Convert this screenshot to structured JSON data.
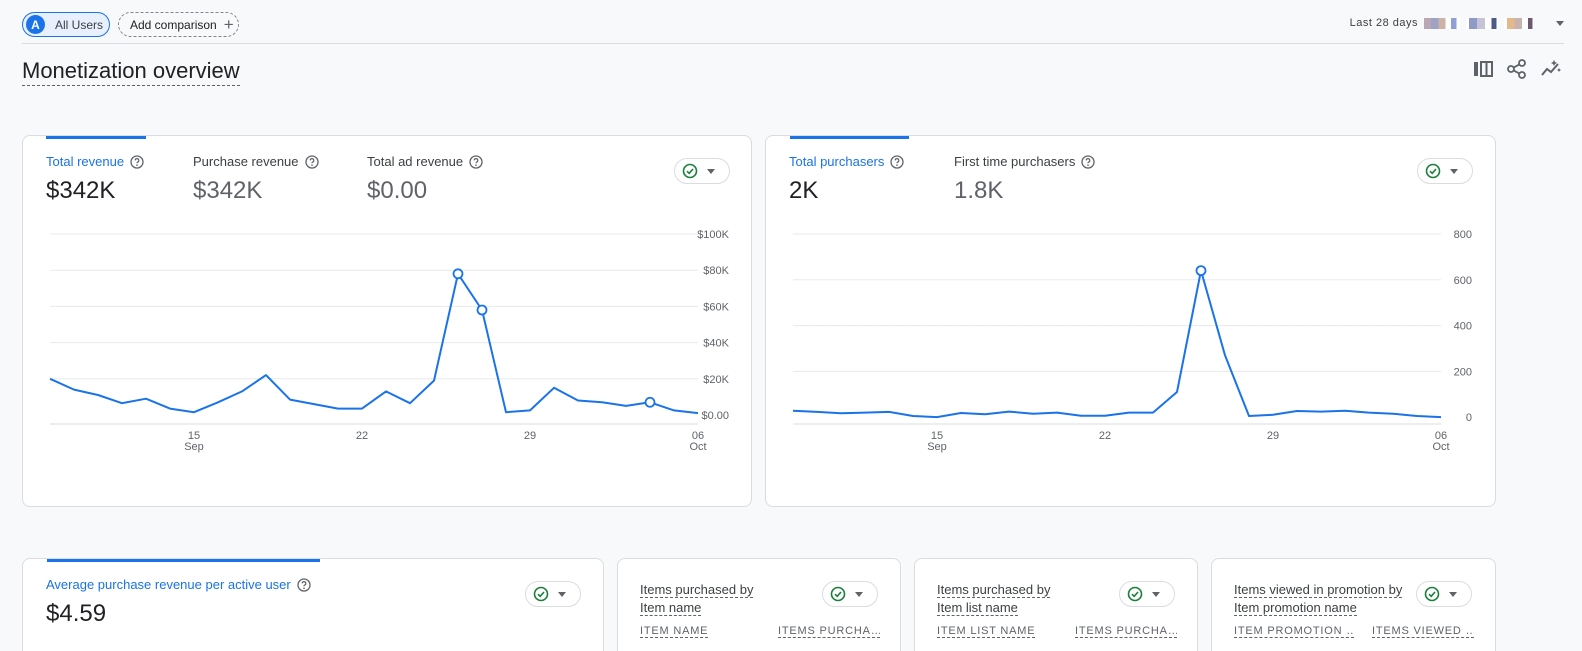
{
  "topbar": {
    "segment_avatar": "A",
    "segment_label": "All Users",
    "add_comparison_label": "Add comparison",
    "add_icon": "+",
    "date_range_label": "Last 28 days"
  },
  "page": {
    "title": "Monetization overview"
  },
  "revenue_card": {
    "metrics": [
      {
        "label": "Total revenue",
        "value": "$342K",
        "active": true
      },
      {
        "label": "Purchase revenue",
        "value": "$342K",
        "active": false
      },
      {
        "label": "Total ad revenue",
        "value": "$0.00",
        "active": false
      }
    ]
  },
  "purchasers_card": {
    "metrics": [
      {
        "label": "Total purchasers",
        "value": "2K",
        "active": true
      },
      {
        "label": "First time purchasers",
        "value": "1.8K",
        "active": false
      }
    ]
  },
  "arpu_card": {
    "metric": {
      "label": "Average purchase revenue per active user",
      "value": "$4.59"
    }
  },
  "table_cards": [
    {
      "title_prefix": "Items purchased by",
      "title_dim": "Item name",
      "col1": "ITEM NAME",
      "col2": "ITEMS PURCHA…"
    },
    {
      "title_prefix": "Items purchased by",
      "title_dim": "Item list name",
      "col1": "ITEM LIST NAME",
      "col2": "ITEMS PURCHA…"
    },
    {
      "title_prefix": "Items viewed in promotion by",
      "title_dim": "Item promotion name",
      "col1": "ITEM PROMOTION …",
      "col2": "ITEMS VIEWED …"
    }
  ],
  "chart_data": [
    {
      "type": "line",
      "title": "",
      "x": [
        "Sep 9",
        "Sep 10",
        "Sep 11",
        "Sep 12",
        "Sep 13",
        "Sep 14",
        "Sep 15",
        "Sep 16",
        "Sep 17",
        "Sep 18",
        "Sep 19",
        "Sep 20",
        "Sep 21",
        "Sep 22",
        "Sep 23",
        "Sep 24",
        "Sep 25",
        "Sep 26",
        "Sep 27",
        "Sep 28",
        "Sep 29",
        "Sep 30",
        "Oct 1",
        "Oct 2",
        "Oct 3",
        "Oct 4",
        "Oct 5",
        "Oct 6"
      ],
      "series": [
        {
          "values": [
            20000,
            14000,
            11000,
            6500,
            9000,
            3500,
            1500,
            7000,
            13000,
            22000,
            8500,
            6000,
            3500,
            3500,
            13000,
            6500,
            19000,
            78000,
            58000,
            1500,
            2500,
            15000,
            8000,
            7000,
            5000,
            7000,
            2500,
            1000
          ]
        }
      ],
      "x_tick_labels": [
        {
          "day": "15",
          "month": "Sep",
          "index": 6
        },
        {
          "day": "22",
          "month": "",
          "index": 13
        },
        {
          "day": "29",
          "month": "",
          "index": 20
        },
        {
          "day": "06",
          "month": "Oct",
          "index": 27
        }
      ],
      "y_tick_labels": [
        "$0.00",
        "$20K",
        "$40K",
        "$60K",
        "$80K",
        "$100K"
      ],
      "y_ticks": [
        0,
        20000,
        40000,
        60000,
        80000,
        100000
      ],
      "ylim": [
        -5000,
        100000
      ],
      "markers": [
        17,
        18,
        25
      ],
      "grid": true,
      "color": "#1a73e8"
    },
    {
      "type": "line",
      "title": "",
      "x": [
        "Sep 9",
        "Sep 10",
        "Sep 11",
        "Sep 12",
        "Sep 13",
        "Sep 14",
        "Sep 15",
        "Sep 16",
        "Sep 17",
        "Sep 18",
        "Sep 19",
        "Sep 20",
        "Sep 21",
        "Sep 22",
        "Sep 23",
        "Sep 24",
        "Sep 25",
        "Sep 26",
        "Sep 27",
        "Sep 28",
        "Sep 29",
        "Sep 30",
        "Oct 1",
        "Oct 2",
        "Oct 3",
        "Oct 4",
        "Oct 5",
        "Oct 6"
      ],
      "series": [
        {
          "values": [
            28,
            23,
            17,
            20,
            23,
            5,
            0,
            18,
            13,
            24,
            15,
            20,
            6,
            6,
            20,
            20,
            110,
            640,
            270,
            5,
            10,
            27,
            24,
            28,
            20,
            15,
            5,
            0
          ]
        }
      ],
      "x_tick_labels": [
        {
          "day": "15",
          "month": "Sep",
          "index": 6
        },
        {
          "day": "22",
          "month": "",
          "index": 13
        },
        {
          "day": "29",
          "month": "",
          "index": 20
        },
        {
          "day": "06",
          "month": "Oct",
          "index": 27
        }
      ],
      "y_tick_labels": [
        "0",
        "200",
        "400",
        "600",
        "800"
      ],
      "y_ticks": [
        0,
        200,
        400,
        600,
        800
      ],
      "ylim": [
        -30,
        800
      ],
      "markers": [
        17
      ],
      "grid": true,
      "color": "#1a73e8"
    }
  ]
}
